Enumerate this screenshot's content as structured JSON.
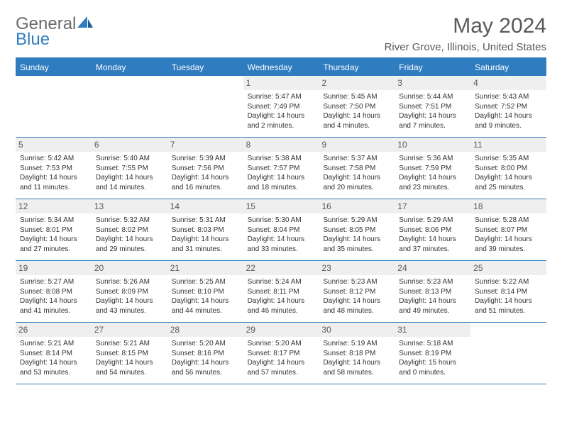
{
  "logo": {
    "part1": "General",
    "part2": "Blue"
  },
  "title": "May 2024",
  "location": "River Grove, Illinois, United States",
  "colors": {
    "brand": "#2f7cc0",
    "grayText": "#595959",
    "dayBg": "#efefef"
  },
  "days": [
    "Sunday",
    "Monday",
    "Tuesday",
    "Wednesday",
    "Thursday",
    "Friday",
    "Saturday"
  ],
  "weeks": [
    [
      {
        "blank": true
      },
      {
        "blank": true
      },
      {
        "blank": true
      },
      {
        "n": "1",
        "sr": "5:47 AM",
        "ss": "7:49 PM",
        "dl": "14 hours and 2 minutes."
      },
      {
        "n": "2",
        "sr": "5:45 AM",
        "ss": "7:50 PM",
        "dl": "14 hours and 4 minutes."
      },
      {
        "n": "3",
        "sr": "5:44 AM",
        "ss": "7:51 PM",
        "dl": "14 hours and 7 minutes."
      },
      {
        "n": "4",
        "sr": "5:43 AM",
        "ss": "7:52 PM",
        "dl": "14 hours and 9 minutes."
      }
    ],
    [
      {
        "n": "5",
        "sr": "5:42 AM",
        "ss": "7:53 PM",
        "dl": "14 hours and 11 minutes."
      },
      {
        "n": "6",
        "sr": "5:40 AM",
        "ss": "7:55 PM",
        "dl": "14 hours and 14 minutes."
      },
      {
        "n": "7",
        "sr": "5:39 AM",
        "ss": "7:56 PM",
        "dl": "14 hours and 16 minutes."
      },
      {
        "n": "8",
        "sr": "5:38 AM",
        "ss": "7:57 PM",
        "dl": "14 hours and 18 minutes."
      },
      {
        "n": "9",
        "sr": "5:37 AM",
        "ss": "7:58 PM",
        "dl": "14 hours and 20 minutes."
      },
      {
        "n": "10",
        "sr": "5:36 AM",
        "ss": "7:59 PM",
        "dl": "14 hours and 23 minutes."
      },
      {
        "n": "11",
        "sr": "5:35 AM",
        "ss": "8:00 PM",
        "dl": "14 hours and 25 minutes."
      }
    ],
    [
      {
        "n": "12",
        "sr": "5:34 AM",
        "ss": "8:01 PM",
        "dl": "14 hours and 27 minutes."
      },
      {
        "n": "13",
        "sr": "5:32 AM",
        "ss": "8:02 PM",
        "dl": "14 hours and 29 minutes."
      },
      {
        "n": "14",
        "sr": "5:31 AM",
        "ss": "8:03 PM",
        "dl": "14 hours and 31 minutes."
      },
      {
        "n": "15",
        "sr": "5:30 AM",
        "ss": "8:04 PM",
        "dl": "14 hours and 33 minutes."
      },
      {
        "n": "16",
        "sr": "5:29 AM",
        "ss": "8:05 PM",
        "dl": "14 hours and 35 minutes."
      },
      {
        "n": "17",
        "sr": "5:29 AM",
        "ss": "8:06 PM",
        "dl": "14 hours and 37 minutes."
      },
      {
        "n": "18",
        "sr": "5:28 AM",
        "ss": "8:07 PM",
        "dl": "14 hours and 39 minutes."
      }
    ],
    [
      {
        "n": "19",
        "sr": "5:27 AM",
        "ss": "8:08 PM",
        "dl": "14 hours and 41 minutes."
      },
      {
        "n": "20",
        "sr": "5:26 AM",
        "ss": "8:09 PM",
        "dl": "14 hours and 43 minutes."
      },
      {
        "n": "21",
        "sr": "5:25 AM",
        "ss": "8:10 PM",
        "dl": "14 hours and 44 minutes."
      },
      {
        "n": "22",
        "sr": "5:24 AM",
        "ss": "8:11 PM",
        "dl": "14 hours and 46 minutes."
      },
      {
        "n": "23",
        "sr": "5:23 AM",
        "ss": "8:12 PM",
        "dl": "14 hours and 48 minutes."
      },
      {
        "n": "24",
        "sr": "5:23 AM",
        "ss": "8:13 PM",
        "dl": "14 hours and 49 minutes."
      },
      {
        "n": "25",
        "sr": "5:22 AM",
        "ss": "8:14 PM",
        "dl": "14 hours and 51 minutes."
      }
    ],
    [
      {
        "n": "26",
        "sr": "5:21 AM",
        "ss": "8:14 PM",
        "dl": "14 hours and 53 minutes."
      },
      {
        "n": "27",
        "sr": "5:21 AM",
        "ss": "8:15 PM",
        "dl": "14 hours and 54 minutes."
      },
      {
        "n": "28",
        "sr": "5:20 AM",
        "ss": "8:16 PM",
        "dl": "14 hours and 56 minutes."
      },
      {
        "n": "29",
        "sr": "5:20 AM",
        "ss": "8:17 PM",
        "dl": "14 hours and 57 minutes."
      },
      {
        "n": "30",
        "sr": "5:19 AM",
        "ss": "8:18 PM",
        "dl": "14 hours and 58 minutes."
      },
      {
        "n": "31",
        "sr": "5:18 AM",
        "ss": "8:19 PM",
        "dl": "15 hours and 0 minutes."
      },
      {
        "blank": true
      }
    ]
  ]
}
